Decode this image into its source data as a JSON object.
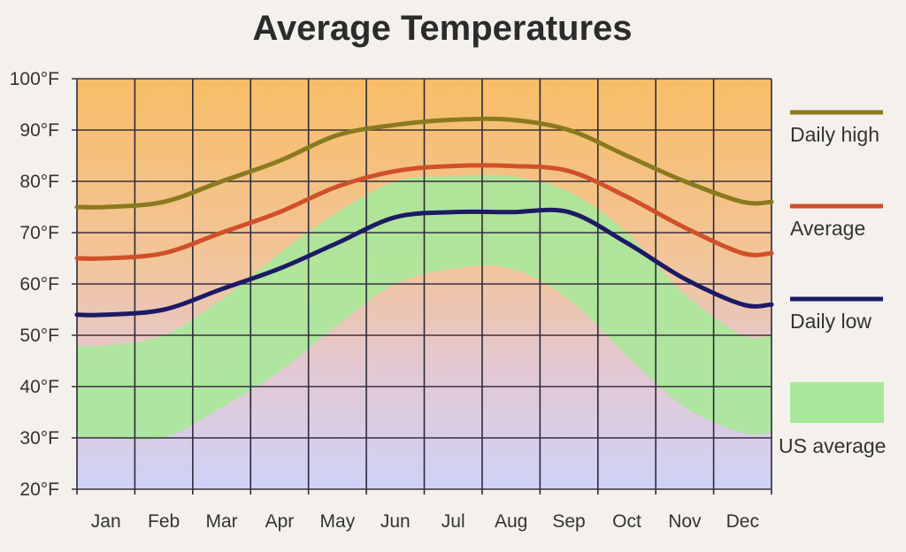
{
  "chart_data": {
    "type": "line",
    "title": "Average Temperatures",
    "xlabel": "",
    "ylabel": "",
    "categories": [
      "Jan",
      "Feb",
      "Mar",
      "Apr",
      "May",
      "Jun",
      "Jul",
      "Aug",
      "Sep",
      "Oct",
      "Nov",
      "Dec"
    ],
    "yticks": [
      "20°F",
      "30°F",
      "40°F",
      "50°F",
      "60°F",
      "70°F",
      "80°F",
      "90°F",
      "100°F"
    ],
    "ylim": [
      20,
      100
    ],
    "grid": true,
    "legend_placement": "right",
    "series": [
      {
        "name": "Daily high",
        "color": "#8a7a1e",
        "values": [
          75,
          76,
          80,
          84,
          89,
          91,
          92,
          92,
          90,
          85,
          80,
          76
        ]
      },
      {
        "name": "Average",
        "color": "#d0502a",
        "values": [
          65,
          66,
          70,
          74,
          79,
          82,
          83,
          83,
          82,
          77,
          71,
          66
        ]
      },
      {
        "name": "Daily low",
        "color": "#1c1a66",
        "values": [
          54,
          55,
          59,
          63,
          68,
          73,
          74,
          74,
          74,
          68,
          61,
          56
        ]
      }
    ],
    "band": {
      "name": "US average",
      "color": "#a8e89a",
      "low": [
        30,
        30,
        36,
        43,
        52,
        60,
        63,
        63,
        57,
        46,
        36,
        31
      ],
      "high": [
        48,
        50,
        57,
        66,
        74,
        80,
        81,
        81,
        78,
        70,
        58,
        50
      ]
    }
  }
}
